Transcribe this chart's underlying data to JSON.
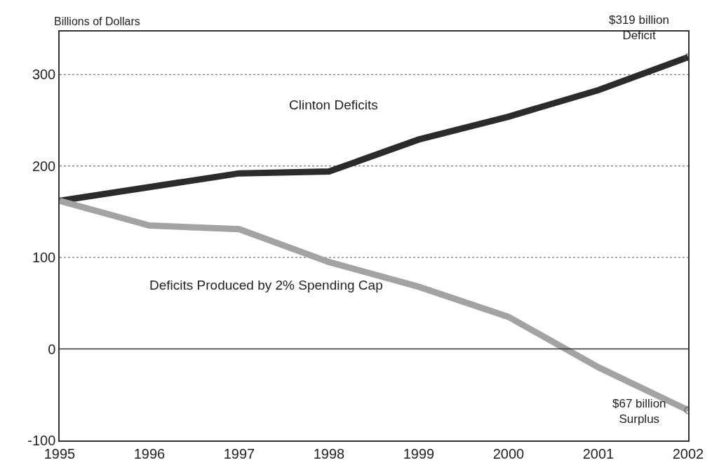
{
  "chart_data": {
    "type": "line",
    "ylabel": "Billions of Dollars",
    "x": [
      1995,
      1996,
      1997,
      1998,
      1999,
      2000,
      2001,
      2002
    ],
    "series": [
      {
        "name": "Clinton Deficits",
        "color": "#2b2b2b",
        "values": [
          162,
          177,
          192,
          194,
          229,
          254,
          283,
          319
        ]
      },
      {
        "name": "Deficits Produced by 2% Spending Cap",
        "color": "#a3a3a3",
        "values": [
          162,
          135,
          131,
          95,
          68,
          35,
          -20,
          -67
        ]
      }
    ],
    "annotations": [
      {
        "text": "$319 billion\nDeficit",
        "x": 2002,
        "y": 319
      },
      {
        "text": "$67 billion\nSurplus",
        "x": 2002,
        "y": -67
      }
    ],
    "xlim": [
      1995,
      2002
    ],
    "xticks": [
      1995,
      1996,
      1997,
      1998,
      1999,
      2000,
      2001,
      2002
    ],
    "ylim": [
      -100,
      347
    ],
    "yticks": [
      -100,
      0,
      100,
      200,
      300
    ],
    "grid": "y",
    "ref_lines": [
      {
        "axis": "y",
        "value": 0,
        "color": "#333333",
        "line_style": "solid"
      }
    ],
    "legend": false,
    "marker": "none",
    "line_style": "solid"
  }
}
